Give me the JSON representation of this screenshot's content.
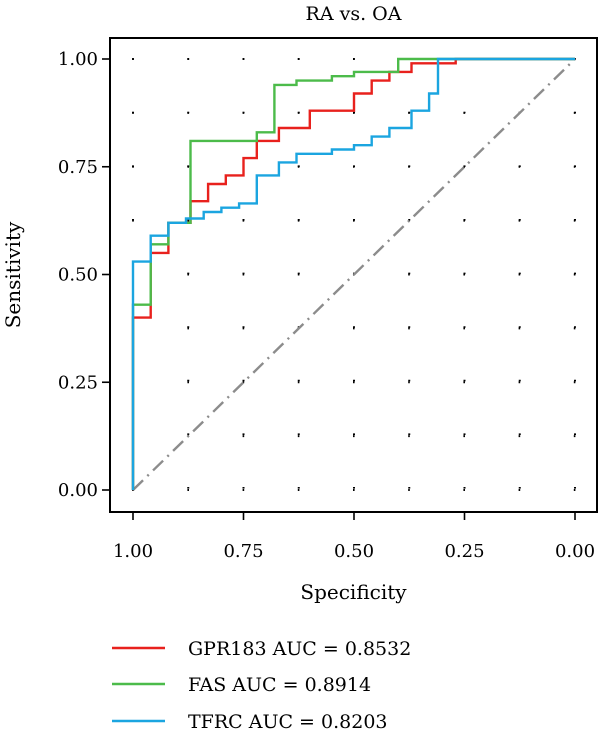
{
  "chart_data": {
    "type": "line",
    "title": "RA vs. OA",
    "xlabel": "Specificity",
    "ylabel": "Sensitivity",
    "xlim": [
      1.0,
      0.0
    ],
    "ylim": [
      0.0,
      1.0
    ],
    "x_reversed": true,
    "xticks": [
      "1.00",
      "0.75",
      "0.50",
      "0.25",
      "0.00"
    ],
    "yticks": [
      "0.00",
      "0.25",
      "0.50",
      "0.75",
      "1.00"
    ],
    "grid": "dotted",
    "legend_position": "bottom",
    "reference_line": {
      "from": [
        1.0,
        0.0
      ],
      "to": [
        0.0,
        1.0
      ],
      "style": "dash-dot",
      "color": "#8c8c8c"
    },
    "series": [
      {
        "name": "GPR183 AUC = 0.8532",
        "color": "#e8211d",
        "points": [
          [
            1.0,
            0.0
          ],
          [
            1.0,
            0.4
          ],
          [
            0.96,
            0.4
          ],
          [
            0.96,
            0.55
          ],
          [
            0.92,
            0.55
          ],
          [
            0.92,
            0.62
          ],
          [
            0.87,
            0.62
          ],
          [
            0.87,
            0.67
          ],
          [
            0.83,
            0.67
          ],
          [
            0.83,
            0.71
          ],
          [
            0.79,
            0.71
          ],
          [
            0.79,
            0.73
          ],
          [
            0.75,
            0.73
          ],
          [
            0.75,
            0.77
          ],
          [
            0.72,
            0.77
          ],
          [
            0.72,
            0.81
          ],
          [
            0.67,
            0.81
          ],
          [
            0.67,
            0.84
          ],
          [
            0.6,
            0.84
          ],
          [
            0.6,
            0.88
          ],
          [
            0.5,
            0.88
          ],
          [
            0.5,
            0.92
          ],
          [
            0.46,
            0.92
          ],
          [
            0.46,
            0.95
          ],
          [
            0.42,
            0.95
          ],
          [
            0.42,
            0.97
          ],
          [
            0.37,
            0.97
          ],
          [
            0.37,
            0.99
          ],
          [
            0.27,
            0.99
          ],
          [
            0.27,
            1.0
          ],
          [
            0.0,
            1.0
          ]
        ]
      },
      {
        "name": "FAS AUC = 0.8914",
        "color": "#4cbb4a",
        "points": [
          [
            1.0,
            0.0
          ],
          [
            1.0,
            0.43
          ],
          [
            0.96,
            0.43
          ],
          [
            0.96,
            0.57
          ],
          [
            0.92,
            0.57
          ],
          [
            0.92,
            0.62
          ],
          [
            0.87,
            0.62
          ],
          [
            0.87,
            0.81
          ],
          [
            0.72,
            0.81
          ],
          [
            0.72,
            0.83
          ],
          [
            0.68,
            0.83
          ],
          [
            0.68,
            0.94
          ],
          [
            0.63,
            0.94
          ],
          [
            0.63,
            0.95
          ],
          [
            0.55,
            0.95
          ],
          [
            0.55,
            0.96
          ],
          [
            0.5,
            0.96
          ],
          [
            0.5,
            0.97
          ],
          [
            0.4,
            0.97
          ],
          [
            0.4,
            1.0
          ],
          [
            0.0,
            1.0
          ]
        ]
      },
      {
        "name": "TFRC AUC = 0.8203",
        "color": "#1ba5e0",
        "points": [
          [
            1.0,
            0.0
          ],
          [
            1.0,
            0.53
          ],
          [
            0.96,
            0.53
          ],
          [
            0.96,
            0.59
          ],
          [
            0.92,
            0.59
          ],
          [
            0.92,
            0.62
          ],
          [
            0.88,
            0.62
          ],
          [
            0.88,
            0.63
          ],
          [
            0.84,
            0.63
          ],
          [
            0.84,
            0.645
          ],
          [
            0.8,
            0.645
          ],
          [
            0.8,
            0.655
          ],
          [
            0.76,
            0.655
          ],
          [
            0.76,
            0.665
          ],
          [
            0.72,
            0.665
          ],
          [
            0.72,
            0.73
          ],
          [
            0.67,
            0.73
          ],
          [
            0.67,
            0.76
          ],
          [
            0.63,
            0.76
          ],
          [
            0.63,
            0.78
          ],
          [
            0.55,
            0.78
          ],
          [
            0.55,
            0.79
          ],
          [
            0.5,
            0.79
          ],
          [
            0.5,
            0.8
          ],
          [
            0.46,
            0.8
          ],
          [
            0.46,
            0.82
          ],
          [
            0.42,
            0.82
          ],
          [
            0.42,
            0.84
          ],
          [
            0.37,
            0.84
          ],
          [
            0.37,
            0.88
          ],
          [
            0.33,
            0.88
          ],
          [
            0.33,
            0.92
          ],
          [
            0.31,
            0.92
          ],
          [
            0.31,
            1.0
          ],
          [
            0.0,
            1.0
          ]
        ]
      }
    ]
  }
}
